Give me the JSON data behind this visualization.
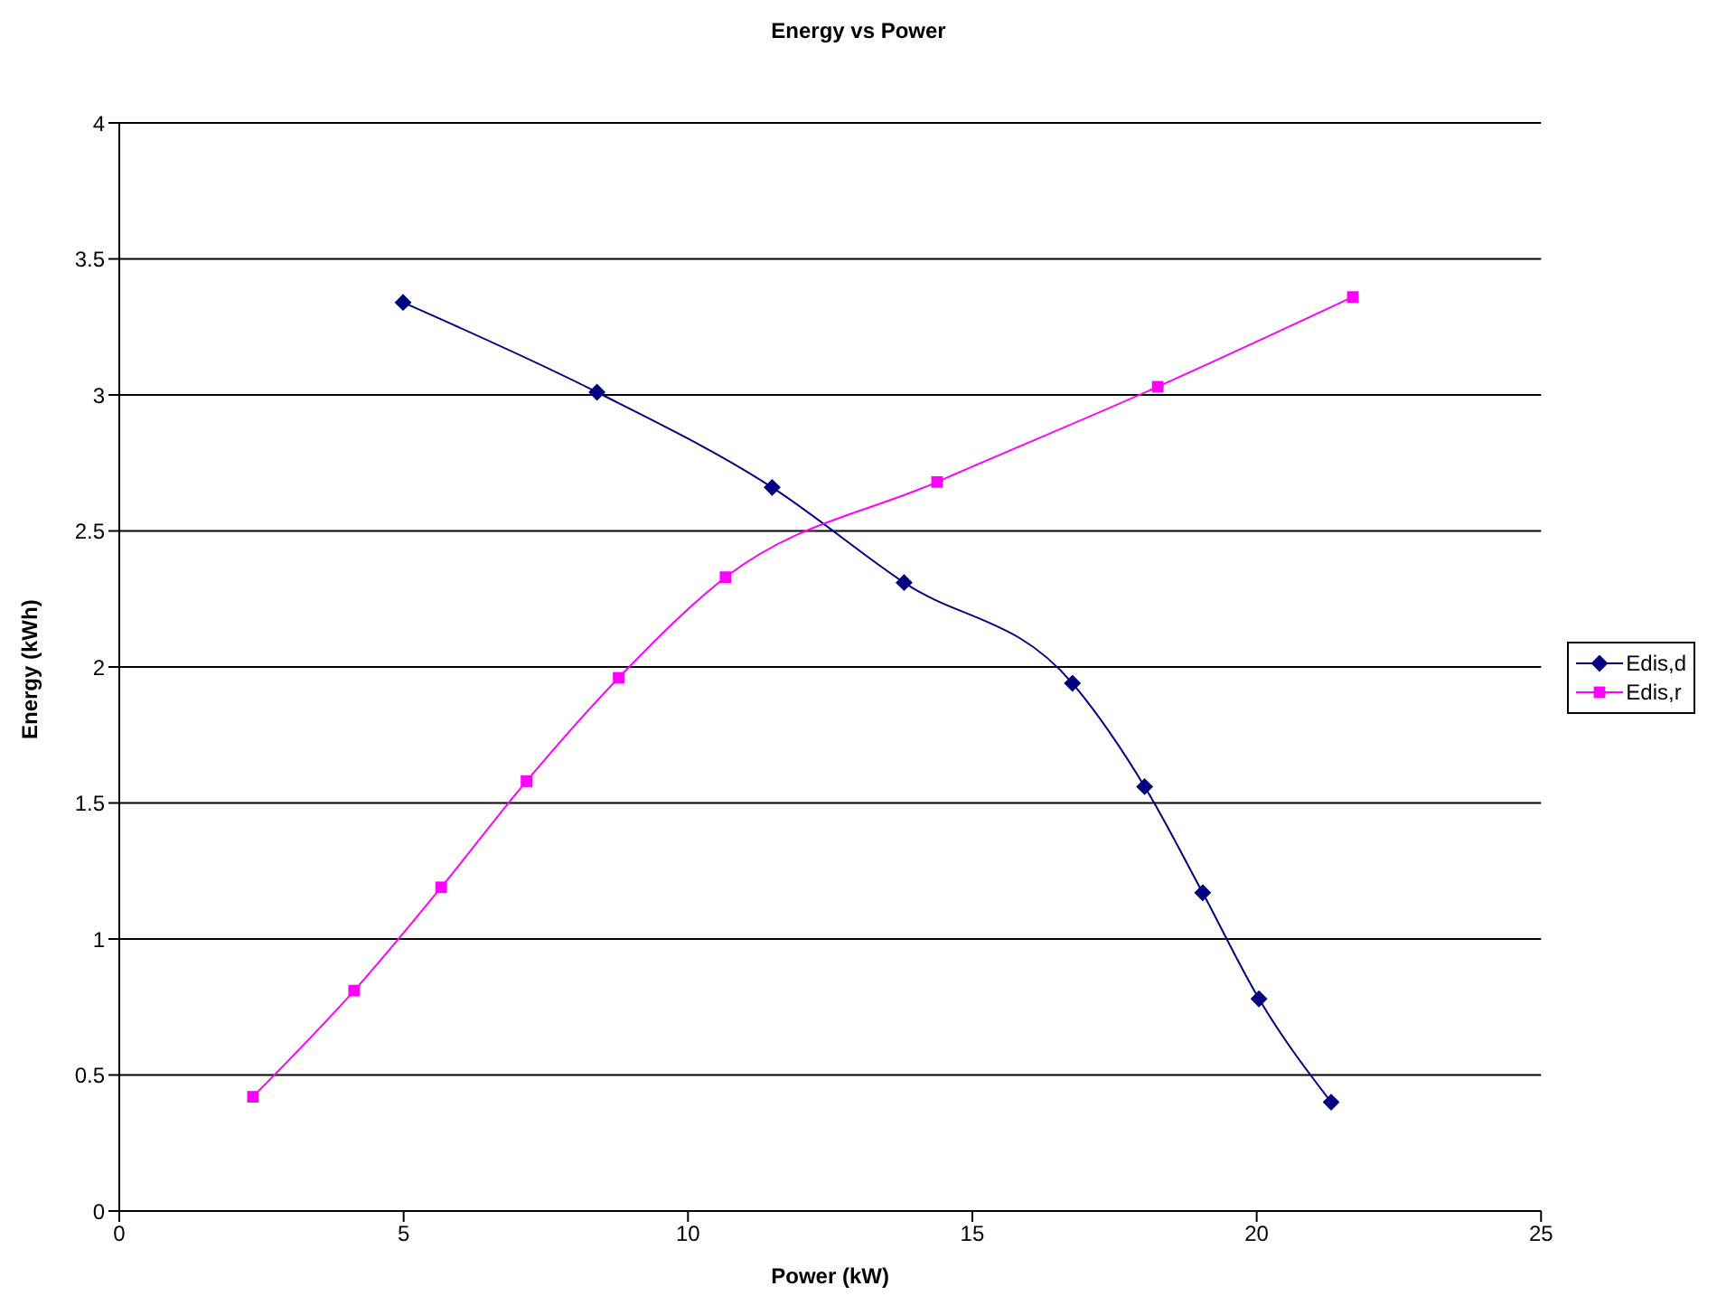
{
  "chart_data": {
    "type": "line",
    "title": "Energy vs Power",
    "xlabel": "Power (kW)",
    "ylabel": "Energy (kWh)",
    "xlim": [
      0,
      25
    ],
    "xticks": [
      0,
      5,
      10,
      15,
      20,
      25
    ],
    "ylim": [
      0,
      4
    ],
    "yticks": [
      0,
      0.5,
      1,
      1.5,
      2,
      2.5,
      3,
      3.5,
      4
    ],
    "grid": "y",
    "legend": "right",
    "line_style": "solid",
    "series": [
      {
        "name": "Edis,d",
        "color": "#000080",
        "marker": "diamond",
        "x": [
          4.99,
          8.4,
          11.48,
          13.8,
          16.76,
          18.03,
          19.05,
          20.04,
          21.31
        ],
        "values": [
          3.34,
          3.01,
          2.66,
          2.31,
          1.94,
          1.56,
          1.17,
          0.78,
          0.4
        ]
      },
      {
        "name": "Edis,r",
        "color": "#ff00ff",
        "marker": "square",
        "x": [
          2.35,
          4.13,
          5.66,
          7.16,
          8.78,
          10.66,
          14.38,
          18.26,
          21.69
        ],
        "values": [
          0.42,
          0.81,
          1.19,
          1.58,
          1.96,
          2.33,
          2.68,
          3.03,
          3.36
        ]
      }
    ]
  }
}
